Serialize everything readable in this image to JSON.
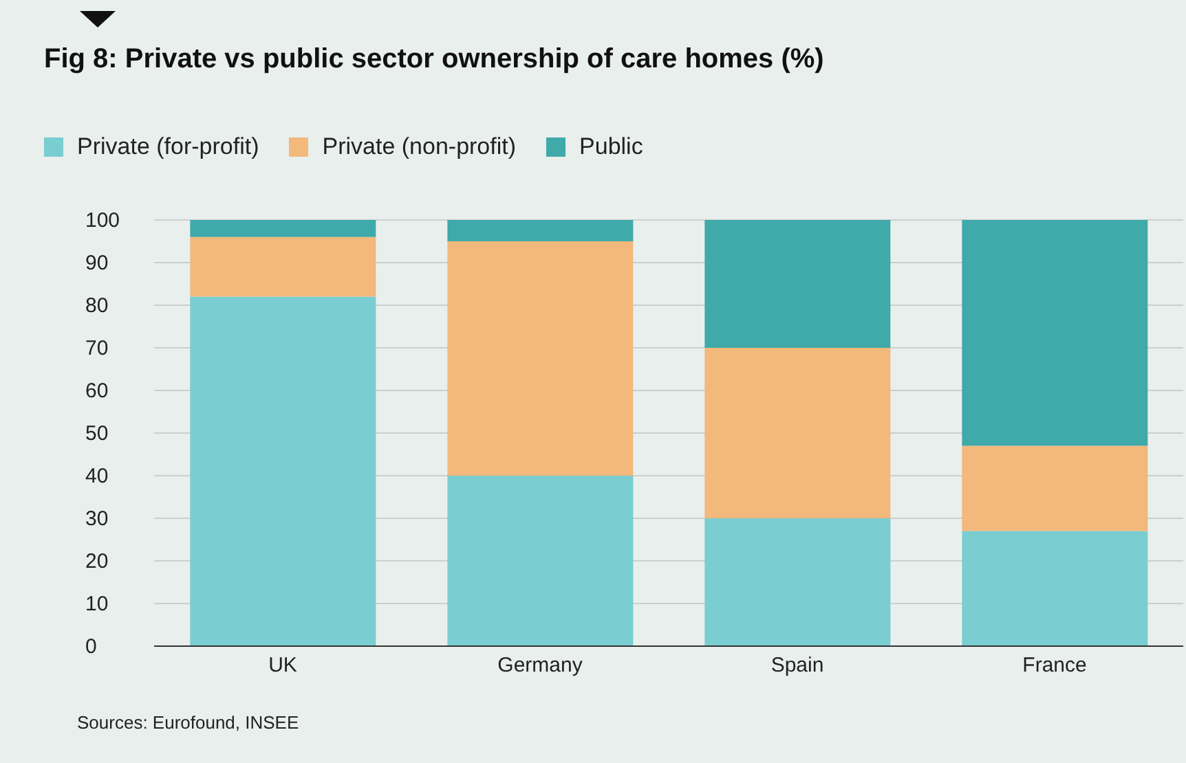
{
  "chart_data": {
    "type": "bar",
    "title": "Fig 8: Private vs public sector ownership of care homes (%)",
    "categories": [
      "UK",
      "Germany",
      "Spain",
      "France"
    ],
    "stacked": true,
    "series": [
      {
        "name": "Private (for-profit)",
        "color": "#7acdd0",
        "values": [
          82,
          40,
          30,
          27
        ]
      },
      {
        "name": "Private (non-profit)",
        "color": "#f2b87c",
        "values": [
          14,
          55,
          40,
          20
        ]
      },
      {
        "name": "Public",
        "color": "#3faaa9",
        "values": [
          4,
          5,
          30,
          53
        ]
      }
    ],
    "ylim": [
      0,
      100
    ],
    "yticks": [
      0,
      10,
      20,
      30,
      40,
      50,
      60,
      70,
      80,
      90,
      100
    ],
    "grid": "y",
    "legend": "top left",
    "annotations": [
      "Sources: Eurofound, INSEE"
    ]
  }
}
